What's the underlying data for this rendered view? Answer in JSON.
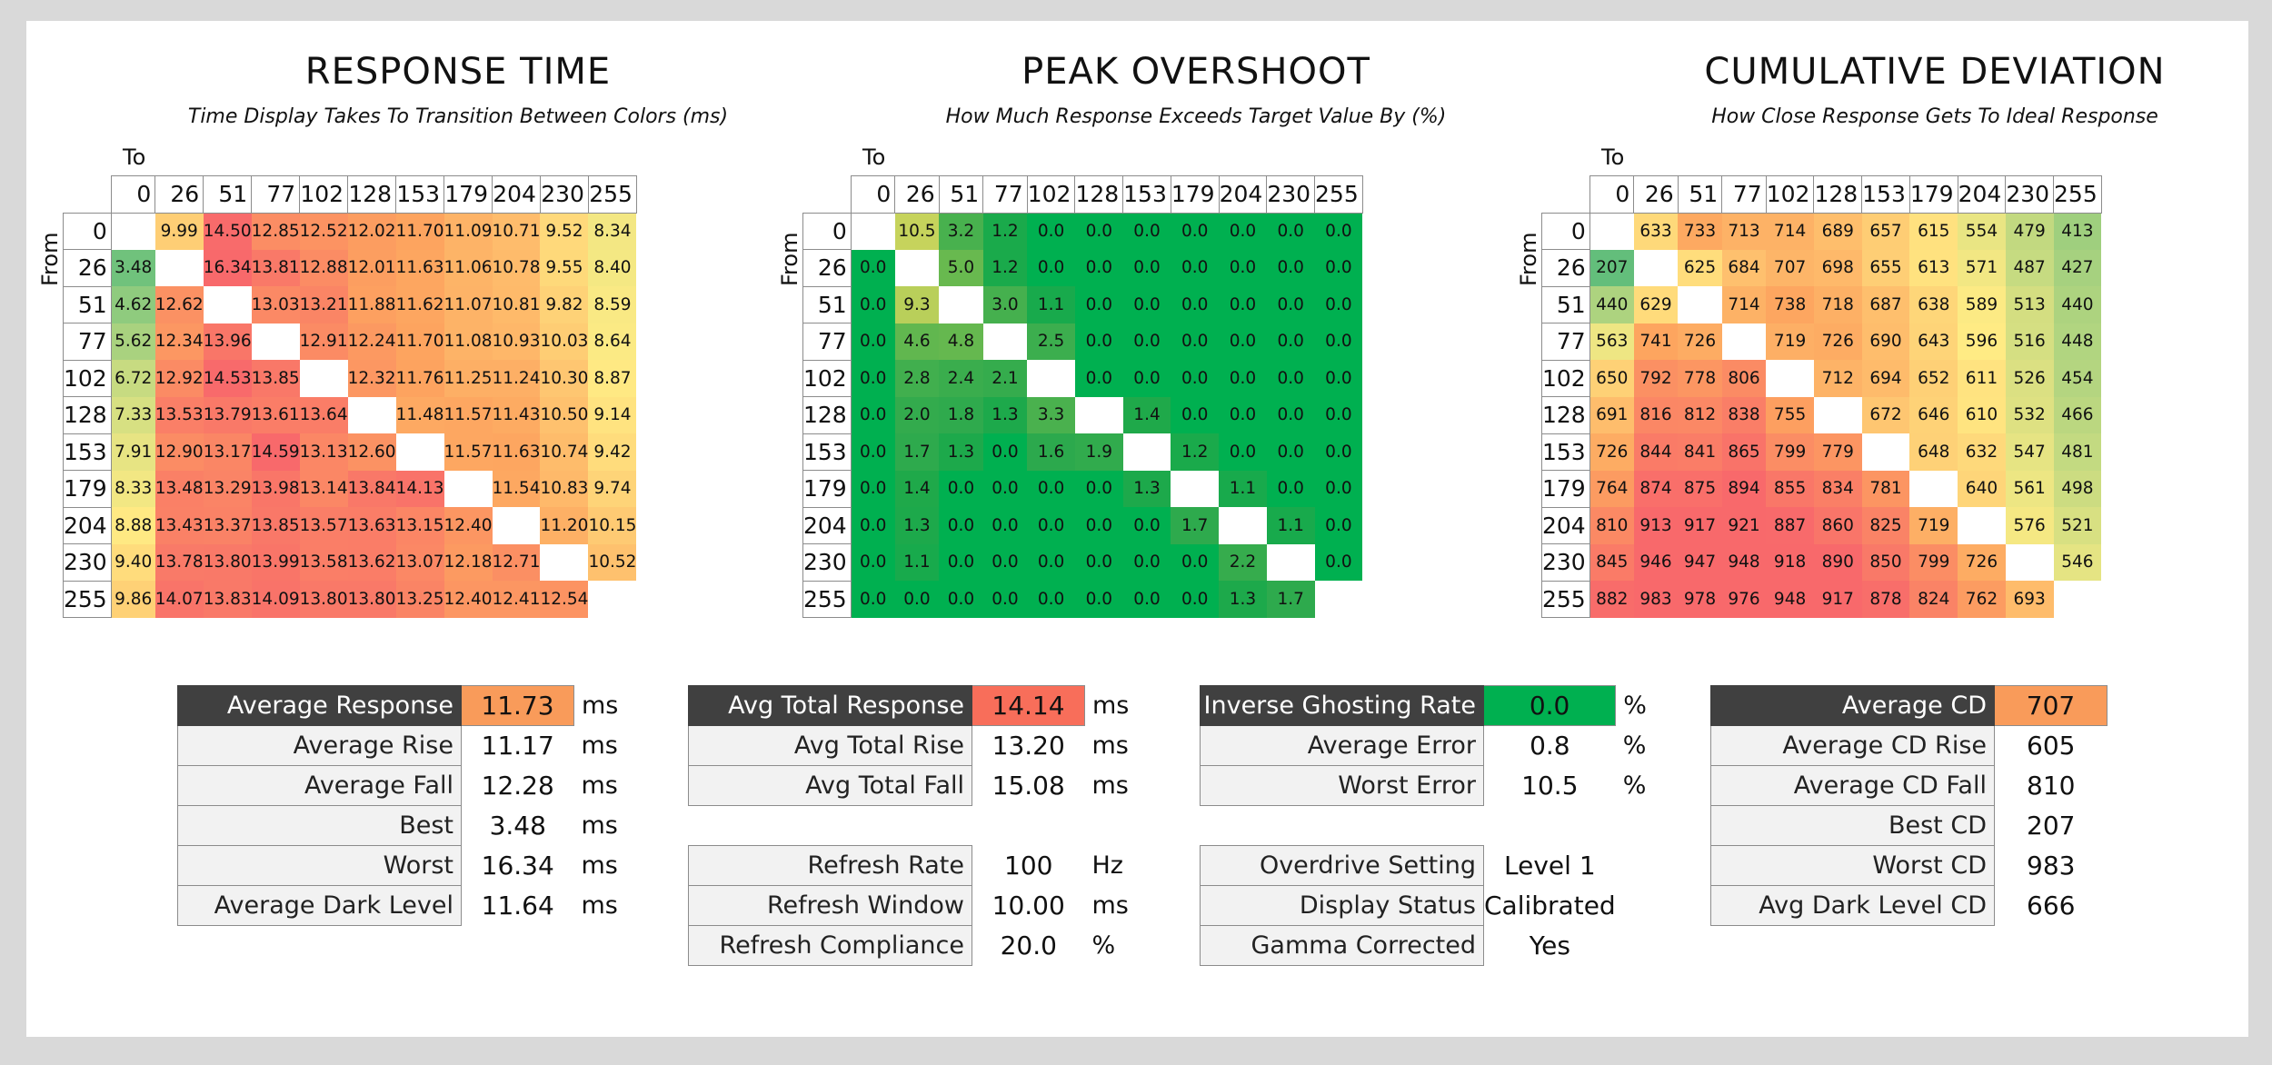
{
  "heatmaps": [
    {
      "title": "RESPONSE TIME",
      "subtitle": "Time Display Takes To Transition Between Colors (ms)",
      "scale": "rt",
      "to_label": "To",
      "from_label": "From",
      "levels": [
        0,
        26,
        51,
        77,
        102,
        128,
        153,
        179,
        204,
        230,
        255
      ],
      "rows": [
        [
          null,
          9.99,
          14.5,
          12.85,
          12.52,
          12.02,
          11.7,
          11.09,
          10.71,
          9.52,
          8.34
        ],
        [
          3.48,
          null,
          16.34,
          13.81,
          12.88,
          12.01,
          11.63,
          11.06,
          10.78,
          9.55,
          8.4
        ],
        [
          4.62,
          12.62,
          null,
          13.03,
          13.21,
          11.88,
          11.62,
          11.07,
          10.81,
          9.82,
          8.59
        ],
        [
          5.62,
          12.34,
          13.96,
          null,
          12.91,
          12.24,
          11.7,
          11.08,
          10.93,
          10.03,
          8.64
        ],
        [
          6.72,
          12.92,
          14.53,
          13.85,
          null,
          12.32,
          11.76,
          11.25,
          11.24,
          10.3,
          8.87
        ],
        [
          7.33,
          13.53,
          13.79,
          13.61,
          13.64,
          null,
          11.48,
          11.57,
          11.43,
          10.5,
          9.14
        ],
        [
          7.91,
          12.9,
          13.17,
          14.59,
          13.13,
          12.6,
          null,
          11.57,
          11.63,
          10.74,
          9.42
        ],
        [
          8.33,
          13.48,
          13.29,
          13.98,
          13.14,
          13.84,
          14.13,
          null,
          11.54,
          10.83,
          9.74
        ],
        [
          8.88,
          13.43,
          13.37,
          13.85,
          13.57,
          13.63,
          13.15,
          12.4,
          null,
          11.2,
          10.15
        ],
        [
          9.4,
          13.78,
          13.8,
          13.99,
          13.58,
          13.62,
          13.07,
          12.18,
          12.71,
          null,
          10.52
        ],
        [
          9.86,
          14.07,
          13.83,
          14.09,
          13.8,
          13.8,
          13.25,
          12.4,
          12.41,
          12.54,
          null
        ]
      ]
    },
    {
      "title": "PEAK OVERSHOOT",
      "subtitle": "How Much Response Exceeds Target Value By (%)",
      "scale": "os",
      "to_label": "To",
      "from_label": "From",
      "levels": [
        0,
        26,
        51,
        77,
        102,
        128,
        153,
        179,
        204,
        230,
        255
      ],
      "rows": [
        [
          null,
          10.5,
          3.2,
          1.2,
          0.0,
          0.0,
          0.0,
          0.0,
          0.0,
          0.0,
          0.0
        ],
        [
          0.0,
          null,
          5.0,
          1.2,
          0.0,
          0.0,
          0.0,
          0.0,
          0.0,
          0.0,
          0.0
        ],
        [
          0.0,
          9.3,
          null,
          3.0,
          1.1,
          0.0,
          0.0,
          0.0,
          0.0,
          0.0,
          0.0
        ],
        [
          0.0,
          4.6,
          4.8,
          null,
          2.5,
          0.0,
          0.0,
          0.0,
          0.0,
          0.0,
          0.0
        ],
        [
          0.0,
          2.8,
          2.4,
          2.1,
          null,
          0.0,
          0.0,
          0.0,
          0.0,
          0.0,
          0.0
        ],
        [
          0.0,
          2.0,
          1.8,
          1.3,
          3.3,
          null,
          1.4,
          0.0,
          0.0,
          0.0,
          0.0
        ],
        [
          0.0,
          1.7,
          1.3,
          0.0,
          1.6,
          1.9,
          null,
          1.2,
          0.0,
          0.0,
          0.0
        ],
        [
          0.0,
          1.4,
          0.0,
          0.0,
          0.0,
          0.0,
          1.3,
          null,
          1.1,
          0.0,
          0.0
        ],
        [
          0.0,
          1.3,
          0.0,
          0.0,
          0.0,
          0.0,
          0.0,
          1.7,
          null,
          1.1,
          0.0
        ],
        [
          0.0,
          1.1,
          0.0,
          0.0,
          0.0,
          0.0,
          0.0,
          0.0,
          2.2,
          null,
          0.0
        ],
        [
          0.0,
          0.0,
          0.0,
          0.0,
          0.0,
          0.0,
          0.0,
          0.0,
          1.3,
          1.7,
          null
        ]
      ]
    },
    {
      "title": "CUMULATIVE DEVIATION",
      "subtitle": "How Close Response Gets To Ideal Response",
      "scale": "cd",
      "to_label": "To",
      "from_label": "From",
      "levels": [
        0,
        26,
        51,
        77,
        102,
        128,
        153,
        179,
        204,
        230,
        255
      ],
      "rows": [
        [
          null,
          633,
          733,
          713,
          714,
          689,
          657,
          615,
          554,
          479,
          413
        ],
        [
          207,
          null,
          625,
          684,
          707,
          698,
          655,
          613,
          571,
          487,
          427
        ],
        [
          440,
          629,
          null,
          714,
          738,
          718,
          687,
          638,
          589,
          513,
          440
        ],
        [
          563,
          741,
          726,
          null,
          719,
          726,
          690,
          643,
          596,
          516,
          448
        ],
        [
          650,
          792,
          778,
          806,
          null,
          712,
          694,
          652,
          611,
          526,
          454
        ],
        [
          691,
          816,
          812,
          838,
          755,
          null,
          672,
          646,
          610,
          532,
          466
        ],
        [
          726,
          844,
          841,
          865,
          799,
          779,
          null,
          648,
          632,
          547,
          481
        ],
        [
          764,
          874,
          875,
          894,
          855,
          834,
          781,
          null,
          640,
          561,
          498
        ],
        [
          810,
          913,
          917,
          921,
          887,
          860,
          825,
          719,
          null,
          576,
          521
        ],
        [
          845,
          946,
          947,
          948,
          918,
          890,
          850,
          799,
          726,
          null,
          546
        ],
        [
          882,
          983,
          978,
          976,
          948,
          917,
          878,
          824,
          762,
          693,
          null
        ]
      ]
    }
  ],
  "stats": [
    {
      "rows": [
        {
          "label": "Average Response",
          "value": "11.73",
          "unit": "ms",
          "head": true,
          "color": "#f99b5a"
        },
        {
          "label": "Average Rise",
          "value": "11.17",
          "unit": "ms"
        },
        {
          "label": "Average Fall",
          "value": "12.28",
          "unit": "ms"
        },
        {
          "label": "Best",
          "value": "3.48",
          "unit": "ms"
        },
        {
          "label": "Worst",
          "value": "16.34",
          "unit": "ms"
        },
        {
          "label": "Average Dark Level",
          "value": "11.64",
          "unit": "ms"
        }
      ]
    },
    {
      "rows": [
        {
          "label": "Avg Total Response",
          "value": "14.14",
          "unit": "ms",
          "head": true,
          "color": "#f86e5a"
        },
        {
          "label": "Avg Total Rise",
          "value": "13.20",
          "unit": "ms"
        },
        {
          "label": "Avg Total Fall",
          "value": "15.08",
          "unit": "ms"
        },
        {
          "blank": true
        },
        {
          "label": "Refresh Rate",
          "value": "100",
          "unit": "Hz"
        },
        {
          "label": "Refresh Window",
          "value": "10.00",
          "unit": "ms"
        },
        {
          "label": "Refresh Compliance",
          "value": "20.0",
          "unit": "%"
        }
      ]
    },
    {
      "rows": [
        {
          "label": "Inverse Ghosting Rate",
          "value": "0.0",
          "unit": "%",
          "head": true,
          "color": "#00b050"
        },
        {
          "label": "Average Error",
          "value": "0.8",
          "unit": "%"
        },
        {
          "label": "Worst Error",
          "value": "10.5",
          "unit": "%"
        },
        {
          "blank": true
        },
        {
          "label": "Overdrive Setting",
          "value": "Level 1",
          "unit": ""
        },
        {
          "label": "Display Status",
          "value": "Calibrated",
          "unit": ""
        },
        {
          "label": "Gamma Corrected",
          "value": "Yes",
          "unit": ""
        }
      ]
    },
    {
      "rows": [
        {
          "label": "Average CD",
          "value": "707",
          "unit": "",
          "head": true,
          "color": "#f99b5a"
        },
        {
          "label": "Average CD Rise",
          "value": "605",
          "unit": ""
        },
        {
          "label": "Average CD Fall",
          "value": "810",
          "unit": ""
        },
        {
          "label": "Best CD",
          "value": "207",
          "unit": ""
        },
        {
          "label": "Worst CD",
          "value": "983",
          "unit": ""
        },
        {
          "label": "Avg Dark Level CD",
          "value": "666",
          "unit": ""
        }
      ]
    }
  ],
  "chart_data": [
    {
      "type": "heatmap",
      "title": "RESPONSE TIME",
      "subtitle": "Time Display Takes To Transition Between Colors (ms)",
      "xlabel": "To",
      "ylabel": "From",
      "x": [
        0,
        26,
        51,
        77,
        102,
        128,
        153,
        179,
        204,
        230,
        255
      ],
      "y": [
        0,
        26,
        51,
        77,
        102,
        128,
        153,
        179,
        204,
        230,
        255
      ],
      "values_ref": "heatmaps.0.rows"
    },
    {
      "type": "heatmap",
      "title": "PEAK OVERSHOOT",
      "subtitle": "How Much Response Exceeds Target Value By (%)",
      "xlabel": "To",
      "ylabel": "From",
      "x": [
        0,
        26,
        51,
        77,
        102,
        128,
        153,
        179,
        204,
        230,
        255
      ],
      "y": [
        0,
        26,
        51,
        77,
        102,
        128,
        153,
        179,
        204,
        230,
        255
      ],
      "values_ref": "heatmaps.1.rows"
    },
    {
      "type": "heatmap",
      "title": "CUMULATIVE DEVIATION",
      "subtitle": "How Close Response Gets To Ideal Response",
      "xlabel": "To",
      "ylabel": "From",
      "x": [
        0,
        26,
        51,
        77,
        102,
        128,
        153,
        179,
        204,
        230,
        255
      ],
      "y": [
        0,
        26,
        51,
        77,
        102,
        128,
        153,
        179,
        204,
        230,
        255
      ],
      "values_ref": "heatmaps.2.rows"
    }
  ]
}
